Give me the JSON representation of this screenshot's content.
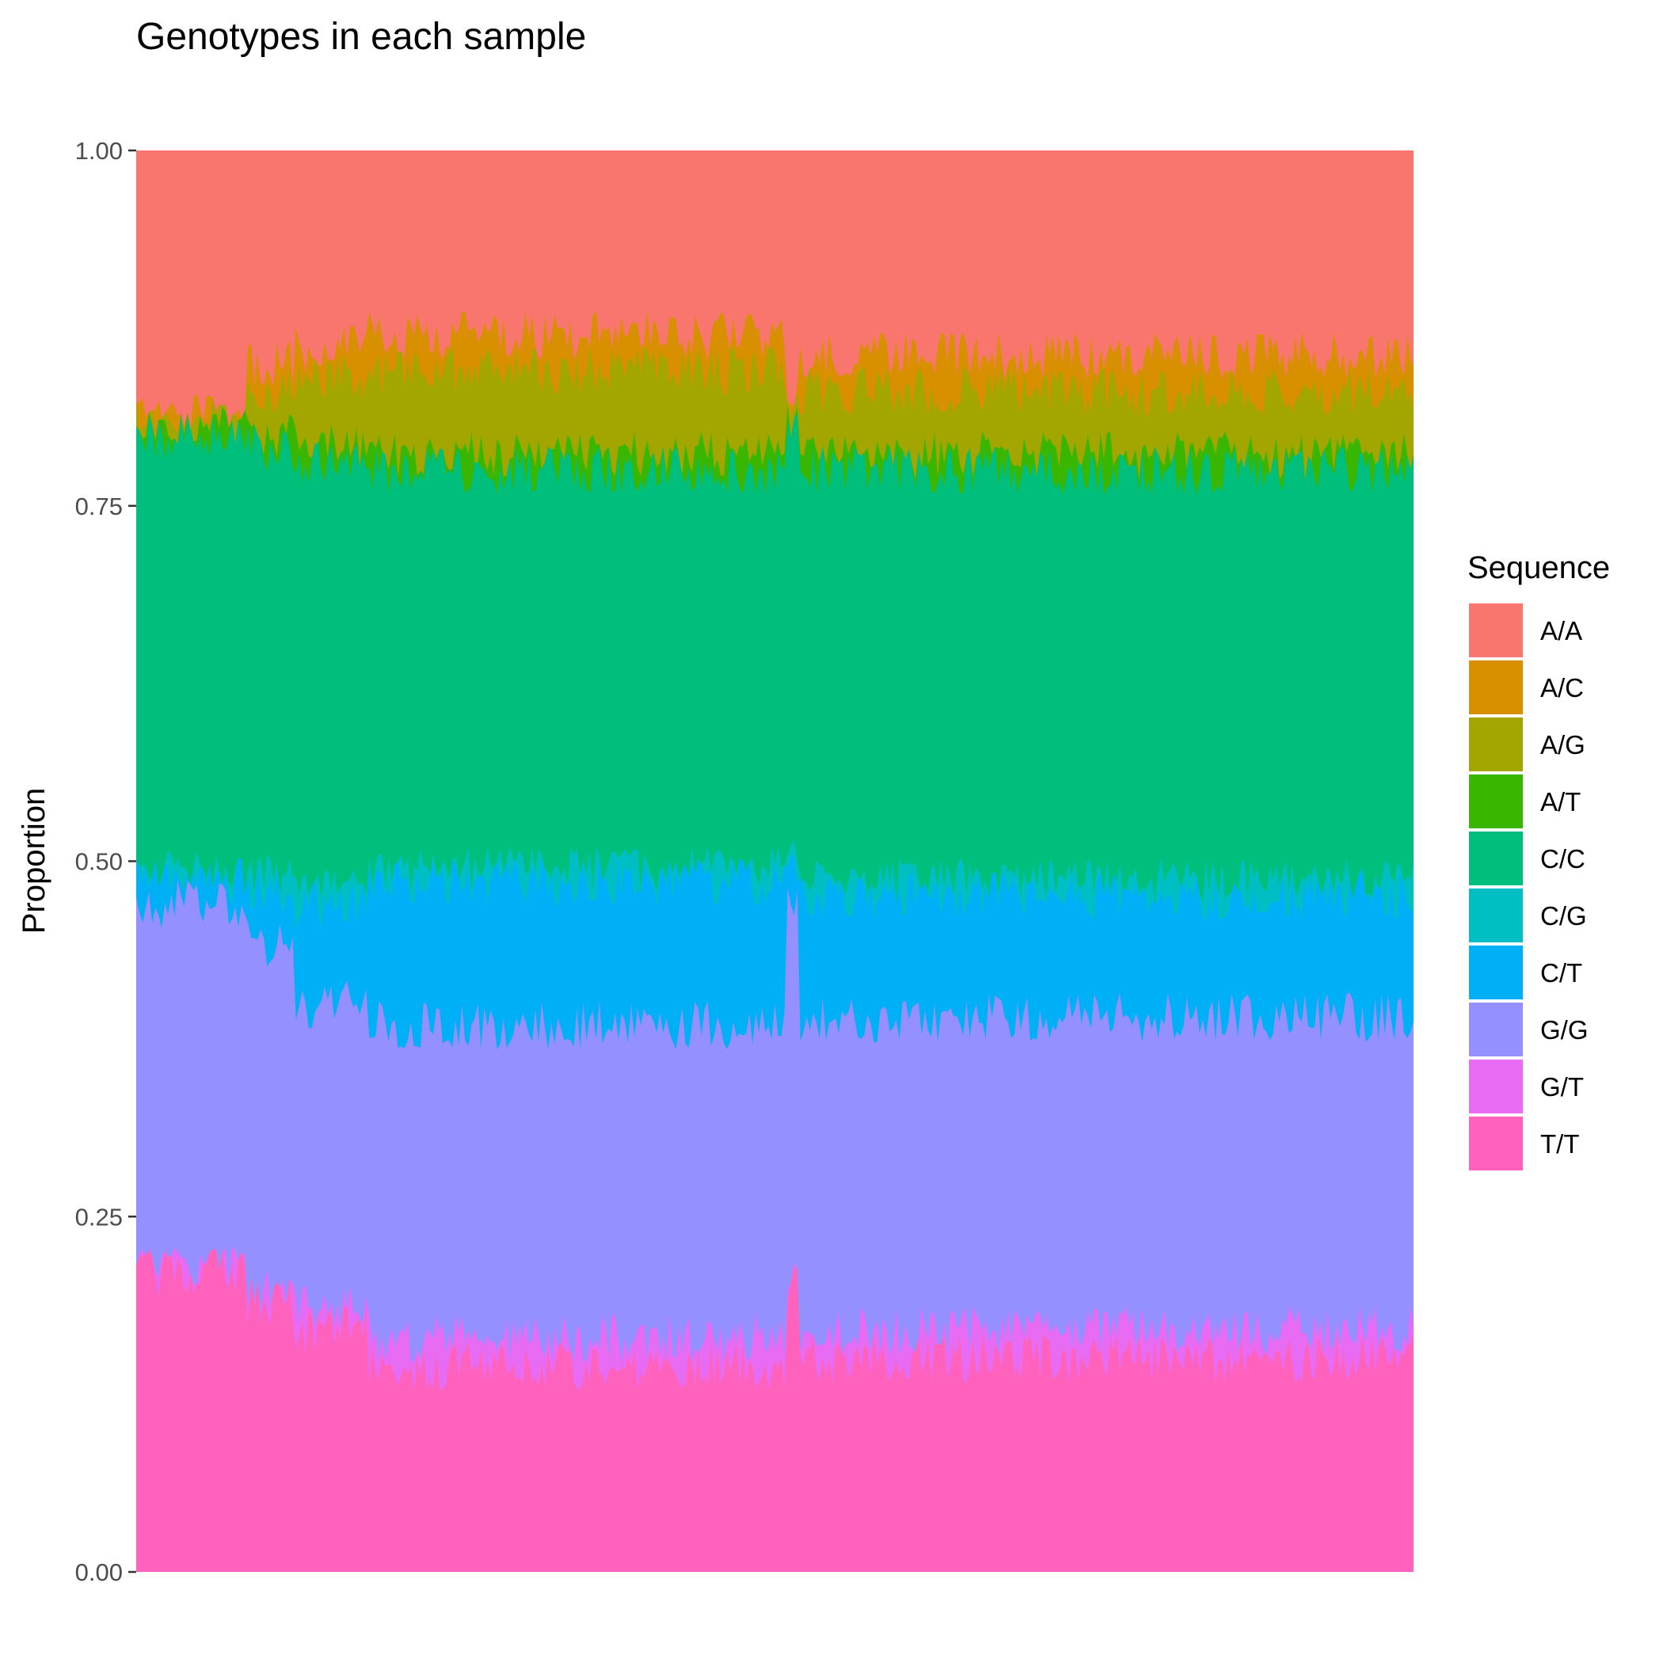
{
  "chart_data": {
    "type": "area",
    "stacking": "proportional",
    "title": "Genotypes in each sample",
    "xlabel": "",
    "ylabel": "Proportion",
    "ylim": [
      0,
      1
    ],
    "yticks": [
      {
        "value": 0.0,
        "label": "0.00"
      },
      {
        "value": 0.25,
        "label": "0.25"
      },
      {
        "value": 0.5,
        "label": "0.50"
      },
      {
        "value": 0.75,
        "label": "0.75"
      },
      {
        "value": 1.0,
        "label": "1.00"
      }
    ],
    "grid": false,
    "legend": {
      "title": "Sequence",
      "position": "right"
    },
    "x_tick_labels": "none",
    "samples_approx": 1600,
    "x_segments": [
      {
        "range": [
          0.0,
          0.087
        ],
        "cumulative": {
          "T/T": 0.21,
          "G/T": 0.215,
          "G/G": 0.47,
          "C/T": 0.485,
          "C/G": 0.49,
          "C/C": 0.8,
          "A/T": 0.805,
          "A/G": 0.81,
          "A/C": 0.812
        }
      },
      {
        "range": [
          0.087,
          0.124
        ],
        "cumulative": {
          "T/T": 0.19,
          "G/T": 0.2,
          "G/G": 0.44,
          "C/T": 0.48,
          "C/G": 0.49,
          "C/C": 0.79,
          "A/T": 0.8,
          "A/G": 0.83,
          "A/C": 0.85
        }
      },
      {
        "range": [
          0.124,
          0.18
        ],
        "cumulative": {
          "T/T": 0.17,
          "G/T": 0.185,
          "G/G": 0.4,
          "C/T": 0.47,
          "C/G": 0.48,
          "C/C": 0.78,
          "A/T": 0.79,
          "A/G": 0.84,
          "A/C": 0.86
        }
      },
      {
        "range": [
          0.18,
          0.508
        ],
        "cumulative": {
          "T/T": 0.145,
          "G/T": 0.165,
          "G/G": 0.385,
          "C/T": 0.485,
          "C/G": 0.495,
          "C/C": 0.775,
          "A/T": 0.785,
          "A/G": 0.845,
          "A/C": 0.87
        }
      },
      {
        "range": [
          0.508,
          0.518
        ],
        "cumulative": {
          "T/T": 0.2,
          "G/T": 0.205,
          "G/G": 0.47,
          "C/T": 0.49,
          "C/G": 0.5,
          "C/C": 0.8,
          "A/T": 0.81,
          "A/G": 0.82,
          "A/C": 0.825
        }
      },
      {
        "range": [
          0.518,
          1.0
        ],
        "cumulative": {
          "T/T": 0.15,
          "G/T": 0.17,
          "G/G": 0.39,
          "C/T": 0.475,
          "C/G": 0.485,
          "C/C": 0.775,
          "A/T": 0.785,
          "A/G": 0.83,
          "A/C": 0.855
        }
      }
    ],
    "series": [
      {
        "name": "A/A",
        "color": "#F8766D"
      },
      {
        "name": "A/C",
        "color": "#D89000"
      },
      {
        "name": "A/G",
        "color": "#A3A500"
      },
      {
        "name": "A/T",
        "color": "#39B600"
      },
      {
        "name": "C/C",
        "color": "#00BF7D"
      },
      {
        "name": "C/G",
        "color": "#00BFC4"
      },
      {
        "name": "C/T",
        "color": "#00B0F6"
      },
      {
        "name": "G/G",
        "color": "#9590FF"
      },
      {
        "name": "G/T",
        "color": "#E76BF3"
      },
      {
        "name": "T/T",
        "color": "#FF62BC"
      }
    ]
  }
}
